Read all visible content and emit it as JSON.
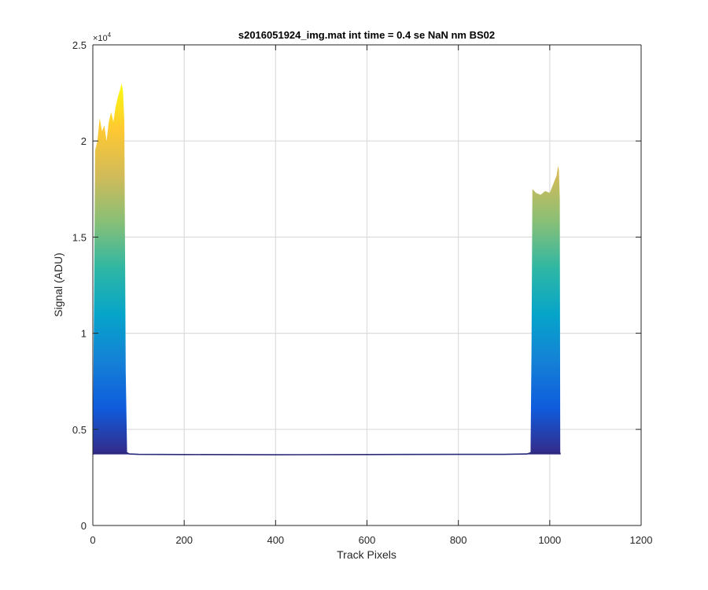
{
  "chart_data": {
    "type": "area",
    "title": "s2016051924_img.mat int time = 0.4 se  NaN nm BS02",
    "xlabel": "Track Pixels",
    "ylabel": "Signal (ADU)",
    "xlim": [
      0,
      1200
    ],
    "ylim": [
      0,
      25000
    ],
    "x_ticks": [
      0,
      200,
      400,
      600,
      800,
      1000,
      1200
    ],
    "x_tick_labels": [
      "0",
      "200",
      "400",
      "600",
      "800",
      "1000",
      "1200"
    ],
    "y_ticks": [
      0,
      5000,
      10000,
      15000,
      20000,
      25000
    ],
    "y_tick_labels": [
      "0",
      "0.5",
      "1",
      "1.5",
      "2",
      "2.5"
    ],
    "y_exponent_label": {
      "base": "×10",
      "exponent": "4"
    },
    "grid": true,
    "colormap": [
      "#352a87",
      "#0f5cdd",
      "#1481d6",
      "#06a4ca",
      "#2eb7a4",
      "#87bf77",
      "#d1bb59",
      "#fec832",
      "#f9fb0e"
    ],
    "baseline_color": "#2a2a7a",
    "baseline_level": 3700,
    "series": [
      {
        "x": [
          0,
          5,
          10,
          15,
          20,
          25,
          30,
          35,
          40,
          45,
          50,
          55,
          60,
          63,
          66,
          69,
          72,
          75,
          80,
          100,
          200,
          400,
          600,
          800,
          900,
          950,
          958,
          960,
          962,
          970,
          980,
          990,
          1000,
          1005,
          1010,
          1015,
          1018,
          1020,
          1022,
          1023
        ],
        "y": [
          3700,
          19500,
          20000,
          21200,
          20500,
          20800,
          20000,
          21000,
          21500,
          21000,
          21800,
          22300,
          22700,
          23000,
          22600,
          21000,
          8000,
          3800,
          3720,
          3700,
          3690,
          3680,
          3690,
          3700,
          3700,
          3720,
          3800,
          9000,
          17500,
          17300,
          17200,
          17400,
          17300,
          17600,
          17900,
          18200,
          18700,
          18500,
          17000,
          3700
        ]
      }
    ]
  }
}
